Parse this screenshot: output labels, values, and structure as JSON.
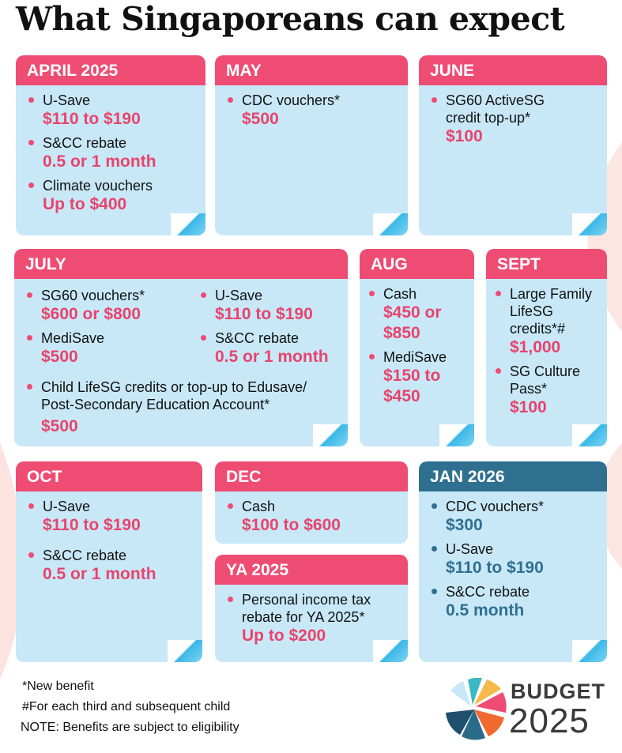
{
  "title": "What Singaporeans can expect",
  "cards": {
    "april": {
      "heading": "APRIL 2025",
      "items": [
        {
          "label": "U-Save",
          "value": "$110 to $190"
        },
        {
          "label": "S&CC rebate",
          "value": "0.5 or 1 month"
        },
        {
          "label": "Climate vouchers",
          "value": "Up to $400"
        }
      ]
    },
    "may": {
      "heading": "MAY",
      "items": [
        {
          "label": "CDC vouchers*",
          "value": "$500"
        }
      ]
    },
    "june": {
      "heading": "JUNE",
      "items": [
        {
          "label": "SG60 ActiveSG credit top-up*",
          "value": "$100"
        }
      ]
    },
    "july": {
      "heading": "JULY",
      "items": [
        {
          "label": "SG60 vouchers*",
          "value": "$600 or $800"
        },
        {
          "label": "MediSave",
          "value": "$500"
        },
        {
          "label": "U-Save",
          "value": "$110 to $190"
        },
        {
          "label": "S&CC rebate",
          "value": "0.5 or 1 month"
        },
        {
          "label": "Child LifeSG credits or top-up to Edusave/ Post-Secondary Education Account*",
          "value": "$500"
        }
      ]
    },
    "aug": {
      "heading": "AUG",
      "items": [
        {
          "label": "Cash",
          "value": "$450 or $850"
        },
        {
          "label": "MediSave",
          "value": "$150 to $450"
        }
      ]
    },
    "sept": {
      "heading": "SEPT",
      "items": [
        {
          "label": "Large Family LifeSG credits*#",
          "value": "$1,000"
        },
        {
          "label": "SG Culture Pass*",
          "value": "$100"
        }
      ]
    },
    "oct": {
      "heading": "OCT",
      "items": [
        {
          "label": "U-Save",
          "value": "$110 to $190"
        },
        {
          "label": "S&CC rebate",
          "value": "0.5 or 1 month"
        }
      ]
    },
    "dec": {
      "heading": "DEC",
      "items": [
        {
          "label": "Cash",
          "value": "$100 to $600"
        }
      ]
    },
    "ya": {
      "heading": "YA 2025",
      "items": [
        {
          "label": "Personal income tax rebate for YA 2025*",
          "value": "Up to $200"
        }
      ]
    },
    "jan": {
      "heading": "JAN 2026",
      "items": [
        {
          "label": "CDC vouchers*",
          "value": "$300"
        },
        {
          "label": "U-Save",
          "value": "$110 to $190"
        },
        {
          "label": "S&CC rebate",
          "value": "0.5 month"
        }
      ]
    }
  },
  "notes": {
    "new_benefit": "*New benefit",
    "each_child": "#For each third and subsequent child",
    "eligibility": "NOTE: Benefits are subject to eligibility"
  },
  "logo": {
    "line1": "BUDGET",
    "line2": "2025"
  },
  "colors": {
    "accent": "#ef4c73",
    "card": "#c8e8f8",
    "blue_accent": "#2f6f8f"
  }
}
